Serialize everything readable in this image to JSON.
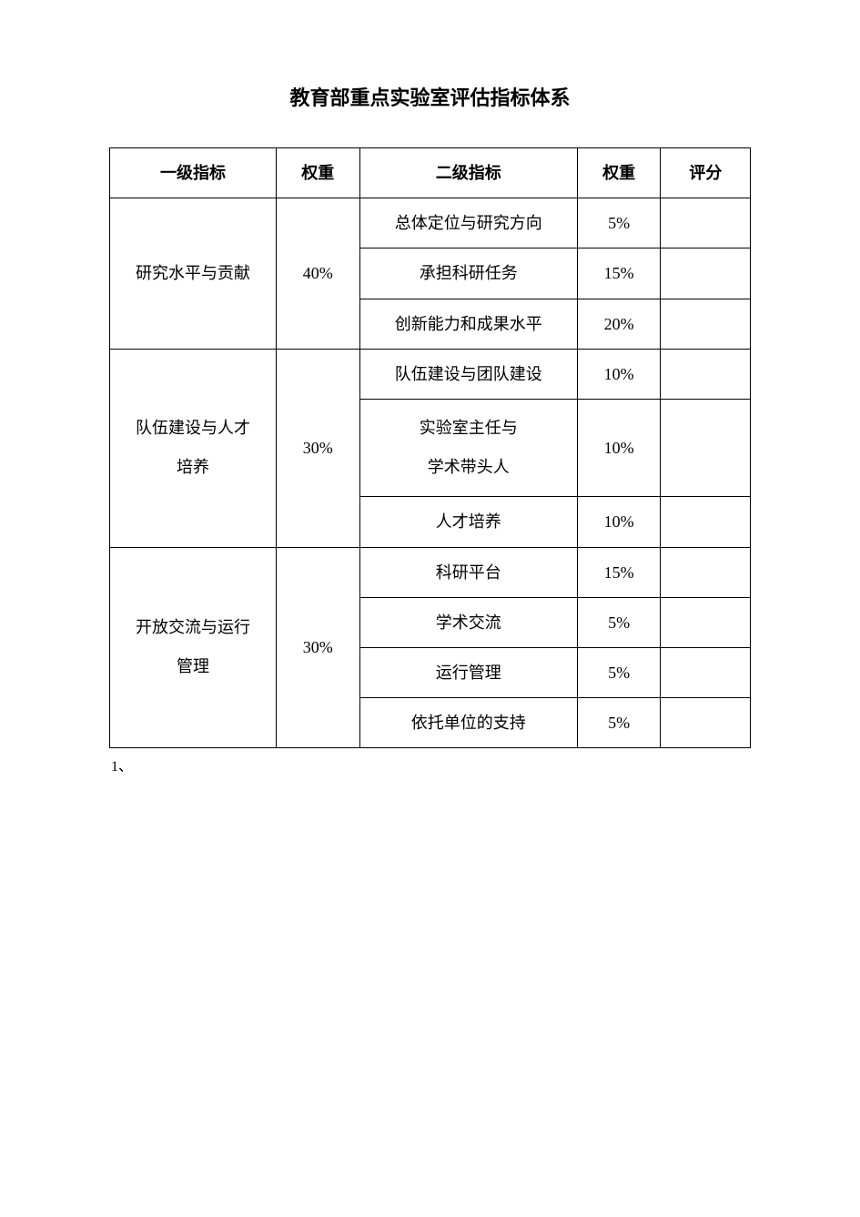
{
  "title": "教育部重点实验室评估指标体系",
  "columns": [
    "一级指标",
    "权重",
    "二级指标",
    "权重",
    "评分"
  ],
  "groups": [
    {
      "level1": "研究水平与贡献",
      "weight": "40%",
      "items": [
        {
          "level2": "总体定位与研究方向",
          "weight": "5%",
          "score": ""
        },
        {
          "level2": "承担科研任务",
          "weight": "15%",
          "score": ""
        },
        {
          "level2": "创新能力和成果水平",
          "weight": "20%",
          "score": ""
        }
      ]
    },
    {
      "level1": "队伍建设与人才培养",
      "weight": "30%",
      "items": [
        {
          "level2": "队伍建设与团队建设",
          "weight": "10%",
          "score": ""
        },
        {
          "level2": "实验室主任与\n学术带头人",
          "weight": "10%",
          "score": ""
        },
        {
          "level2": "人才培养",
          "weight": "10%",
          "score": ""
        }
      ]
    },
    {
      "level1": "开放交流与运行管理",
      "weight": "30%",
      "items": [
        {
          "level2": "科研平台",
          "weight": "15%",
          "score": ""
        },
        {
          "level2": "学术交流",
          "weight": "5%",
          "score": ""
        },
        {
          "level2": "运行管理",
          "weight": "5%",
          "score": ""
        },
        {
          "level2": "依托单位的支持",
          "weight": "5%",
          "score": ""
        }
      ]
    }
  ],
  "footnote": "1、",
  "style": {
    "page_bg": "#ffffff",
    "text_color": "#000000",
    "border_color": "#000000",
    "title_fontsize": 22,
    "cell_fontsize": 18,
    "footnote_fontsize": 16,
    "col_widths_pct": [
      26,
      13,
      34,
      13,
      14
    ]
  }
}
